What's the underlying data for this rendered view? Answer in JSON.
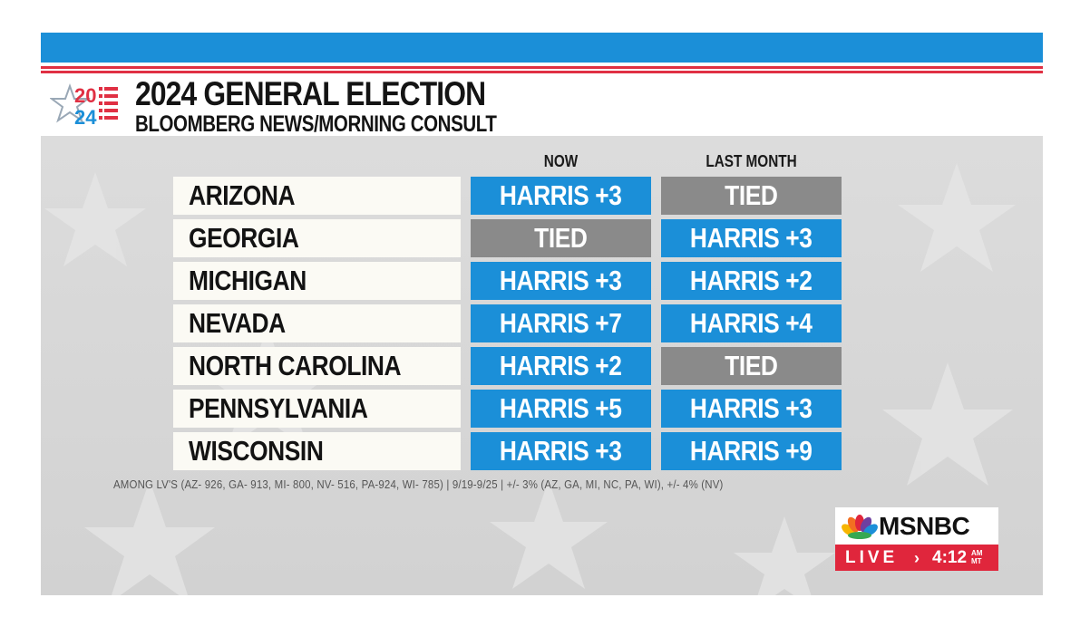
{
  "header": {
    "logo_year_top": "20",
    "logo_year_bottom": "24",
    "title": "2024 GENERAL ELECTION",
    "subtitle": "BLOOMBERG NEWS/MORNING CONSULT"
  },
  "columns": {
    "now": "NOW",
    "last_month": "LAST MONTH"
  },
  "rows": [
    {
      "state": "ARIZONA",
      "now": "HARRIS +3",
      "last": "TIED"
    },
    {
      "state": "GEORGIA",
      "now": "TIED",
      "last": "HARRIS +3"
    },
    {
      "state": "MICHIGAN",
      "now": "HARRIS +3",
      "last": "HARRIS +2"
    },
    {
      "state": "NEVADA",
      "now": "HARRIS +7",
      "last": "HARRIS +4"
    },
    {
      "state": "NORTH CAROLINA",
      "now": "HARRIS +2",
      "last": "TIED"
    },
    {
      "state": "PENNSYLVANIA",
      "now": "HARRIS +5",
      "last": "HARRIS +3"
    },
    {
      "state": "WISCONSIN",
      "now": "HARRIS +3",
      "last": "HARRIS +9"
    }
  ],
  "footnote": "AMONG LV'S (AZ- 926, GA- 913, MI- 800, NV- 516, PA-924, WI- 785) | 9/19-9/25 | +/- 3% (AZ, GA, MI, NC, PA, WI), +/- 4% (NV)",
  "network": {
    "name": "MSNBC",
    "live_label": "LIVE",
    "time": "4:12",
    "ampm_top": "AM",
    "ampm_bottom": "MT"
  },
  "colors": {
    "harris": "#1b8fd8",
    "tied": "#8a8a8a",
    "live_red": "#e0263c",
    "stripe_red": "#e03043"
  }
}
